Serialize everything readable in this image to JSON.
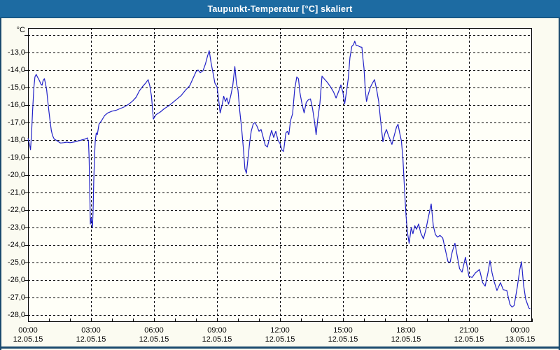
{
  "window": {
    "title": "Taupunkt-Temperatur [°C] skaliert"
  },
  "colors": {
    "title_bar": "#1d6ba2",
    "title_text": "#ffffff",
    "frame": "#1b4a6e",
    "page_bg": "#fbfbf1",
    "plot_bg": "#fffff8",
    "grid": "#000000",
    "axis": "#000000",
    "line": "#2121c8",
    "label": "#000000"
  },
  "chart_data": {
    "type": "line",
    "title": "Taupunkt-Temperatur [°C] skaliert",
    "grid": "dashed",
    "legend": "none",
    "y_axis": {
      "unit_label": "°C",
      "min": -28.4,
      "max": -11.6,
      "gridline_values": [
        -12,
        -13,
        -14,
        -15,
        -16,
        -17,
        -18,
        -19,
        -20,
        -21,
        -22,
        -23,
        -24,
        -25,
        -26,
        -27,
        -28
      ],
      "labeled_ticks": [
        {
          "v": -13,
          "label": "-13,0"
        },
        {
          "v": -14,
          "label": "-14,0"
        },
        {
          "v": -15,
          "label": "-15,0"
        },
        {
          "v": -16,
          "label": "-16,0"
        },
        {
          "v": -17,
          "label": "-17,0"
        },
        {
          "v": -18,
          "label": "-18,0"
        },
        {
          "v": -19,
          "label": "-19,0"
        },
        {
          "v": -20,
          "label": "-20,0"
        },
        {
          "v": -21,
          "label": "-21,0"
        },
        {
          "v": -22,
          "label": "-22,0"
        },
        {
          "v": -23,
          "label": "-23,0"
        },
        {
          "v": -24,
          "label": "-24,0"
        },
        {
          "v": -25,
          "label": "-25,0"
        },
        {
          "v": -26,
          "label": "-26,0"
        },
        {
          "v": -27,
          "label": "-27,0"
        },
        {
          "v": -28,
          "label": "-28,0"
        }
      ]
    },
    "x_axis": {
      "min_hours": 0,
      "max_hours": 24,
      "gridline_step_hours": 3,
      "minor_tick_hours": 1,
      "ticks": [
        {
          "t": 0,
          "time": "00:00",
          "date": "12.05.15",
          "offset": 0
        },
        {
          "t": 3,
          "time": "03:00",
          "date": "12.05.15",
          "offset": 0
        },
        {
          "t": 6,
          "time": "06:00",
          "date": "12.05.15",
          "offset": 0
        },
        {
          "t": 9,
          "time": "09:00",
          "date": "12.05.15",
          "offset": 0
        },
        {
          "t": 12,
          "time": "12:00",
          "date": "12.05.15",
          "offset": 0
        },
        {
          "t": 15,
          "time": "15:00",
          "date": "12.05.15",
          "offset": 0
        },
        {
          "t": 18,
          "time": "18:00",
          "date": "12.05.15",
          "offset": 0
        },
        {
          "t": 21,
          "time": "21:00",
          "date": "12.05.15",
          "offset": 0
        },
        {
          "t": 24,
          "time": "00:00",
          "date": "13.05.15",
          "offset": -17
        }
      ]
    },
    "series": [
      {
        "name": "Taupunkt-Temperatur",
        "color": "#2121c8",
        "points": [
          [
            0.0,
            -17.9
          ],
          [
            0.07,
            -18.25
          ],
          [
            0.12,
            -18.55
          ],
          [
            0.17,
            -17.6
          ],
          [
            0.22,
            -16.3
          ],
          [
            0.28,
            -15.0
          ],
          [
            0.33,
            -14.4
          ],
          [
            0.39,
            -14.25
          ],
          [
            0.45,
            -14.4
          ],
          [
            0.5,
            -14.5
          ],
          [
            0.56,
            -14.65
          ],
          [
            0.61,
            -14.8
          ],
          [
            0.67,
            -14.87
          ],
          [
            0.72,
            -14.6
          ],
          [
            0.78,
            -14.5
          ],
          [
            0.83,
            -14.75
          ],
          [
            0.89,
            -15.15
          ],
          [
            0.94,
            -15.75
          ],
          [
            1.0,
            -16.4
          ],
          [
            1.06,
            -17.0
          ],
          [
            1.11,
            -17.45
          ],
          [
            1.17,
            -17.75
          ],
          [
            1.25,
            -17.95
          ],
          [
            1.33,
            -18.0
          ],
          [
            1.45,
            -18.1
          ],
          [
            1.55,
            -18.17
          ],
          [
            1.7,
            -18.15
          ],
          [
            1.85,
            -18.12
          ],
          [
            2.0,
            -18.15
          ],
          [
            2.1,
            -18.13
          ],
          [
            2.25,
            -18.1
          ],
          [
            2.4,
            -18.05
          ],
          [
            2.55,
            -18.0
          ],
          [
            2.7,
            -17.95
          ],
          [
            2.83,
            -17.88
          ],
          [
            2.88,
            -18.1
          ],
          [
            2.91,
            -19.0
          ],
          [
            2.94,
            -20.8
          ],
          [
            2.97,
            -22.8
          ],
          [
            3.0,
            -22.45
          ],
          [
            3.04,
            -22.7
          ],
          [
            3.07,
            -23.0
          ],
          [
            3.1,
            -22.0
          ],
          [
            3.13,
            -20.4
          ],
          [
            3.17,
            -18.9
          ],
          [
            3.2,
            -18.1
          ],
          [
            3.25,
            -17.6
          ],
          [
            3.3,
            -17.7
          ],
          [
            3.38,
            -17.1
          ],
          [
            3.5,
            -16.9
          ],
          [
            3.65,
            -16.6
          ],
          [
            3.8,
            -16.45
          ],
          [
            4.0,
            -16.35
          ],
          [
            4.2,
            -16.3
          ],
          [
            4.4,
            -16.2
          ],
          [
            4.6,
            -16.1
          ],
          [
            4.8,
            -15.95
          ],
          [
            5.0,
            -15.75
          ],
          [
            5.15,
            -15.55
          ],
          [
            5.3,
            -15.2
          ],
          [
            5.45,
            -14.95
          ],
          [
            5.6,
            -14.75
          ],
          [
            5.72,
            -14.55
          ],
          [
            5.8,
            -14.9
          ],
          [
            5.88,
            -15.5
          ],
          [
            5.97,
            -16.8
          ],
          [
            6.1,
            -16.55
          ],
          [
            6.3,
            -16.4
          ],
          [
            6.5,
            -16.2
          ],
          [
            6.7,
            -16.05
          ],
          [
            6.9,
            -15.85
          ],
          [
            7.1,
            -15.65
          ],
          [
            7.3,
            -15.45
          ],
          [
            7.5,
            -15.15
          ],
          [
            7.7,
            -14.9
          ],
          [
            7.85,
            -14.5
          ],
          [
            8.0,
            -14.1
          ],
          [
            8.1,
            -14.0
          ],
          [
            8.2,
            -14.15
          ],
          [
            8.33,
            -14.05
          ],
          [
            8.45,
            -13.65
          ],
          [
            8.55,
            -13.2
          ],
          [
            8.63,
            -12.9
          ],
          [
            8.72,
            -13.6
          ],
          [
            8.8,
            -14.1
          ],
          [
            8.9,
            -14.75
          ],
          [
            9.0,
            -14.95
          ],
          [
            9.08,
            -15.7
          ],
          [
            9.15,
            -16.45
          ],
          [
            9.25,
            -15.95
          ],
          [
            9.32,
            -15.5
          ],
          [
            9.4,
            -15.8
          ],
          [
            9.47,
            -15.6
          ],
          [
            9.55,
            -15.95
          ],
          [
            9.65,
            -15.5
          ],
          [
            9.75,
            -14.9
          ],
          [
            9.85,
            -13.8
          ],
          [
            9.93,
            -14.8
          ],
          [
            10.0,
            -15.15
          ],
          [
            10.08,
            -16.3
          ],
          [
            10.17,
            -17.3
          ],
          [
            10.25,
            -18.4
          ],
          [
            10.33,
            -19.65
          ],
          [
            10.4,
            -19.9
          ],
          [
            10.48,
            -19.0
          ],
          [
            10.56,
            -18.1
          ],
          [
            10.63,
            -17.5
          ],
          [
            10.72,
            -17.1
          ],
          [
            10.8,
            -17.0
          ],
          [
            10.9,
            -17.2
          ],
          [
            11.0,
            -17.5
          ],
          [
            11.1,
            -17.4
          ],
          [
            11.2,
            -17.85
          ],
          [
            11.3,
            -18.3
          ],
          [
            11.4,
            -18.4
          ],
          [
            11.5,
            -17.9
          ],
          [
            11.6,
            -17.45
          ],
          [
            11.7,
            -17.85
          ],
          [
            11.8,
            -17.5
          ],
          [
            11.9,
            -18.0
          ],
          [
            12.0,
            -18.2
          ],
          [
            12.1,
            -18.6
          ],
          [
            12.17,
            -18.65
          ],
          [
            12.28,
            -17.6
          ],
          [
            12.35,
            -17.5
          ],
          [
            12.42,
            -17.7
          ],
          [
            12.5,
            -16.9
          ],
          [
            12.6,
            -16.5
          ],
          [
            12.7,
            -15.1
          ],
          [
            12.8,
            -14.4
          ],
          [
            12.88,
            -14.5
          ],
          [
            12.95,
            -15.3
          ],
          [
            13.05,
            -15.95
          ],
          [
            13.15,
            -16.45
          ],
          [
            13.25,
            -15.85
          ],
          [
            13.35,
            -15.7
          ],
          [
            13.45,
            -15.65
          ],
          [
            13.55,
            -16.2
          ],
          [
            13.65,
            -17.0
          ],
          [
            13.72,
            -17.7
          ],
          [
            13.8,
            -16.8
          ],
          [
            13.9,
            -15.9
          ],
          [
            14.0,
            -14.35
          ],
          [
            14.1,
            -14.5
          ],
          [
            14.25,
            -14.7
          ],
          [
            14.4,
            -14.95
          ],
          [
            14.55,
            -15.25
          ],
          [
            14.67,
            -15.6
          ],
          [
            14.8,
            -15.2
          ],
          [
            14.9,
            -14.85
          ],
          [
            15.0,
            -15.3
          ],
          [
            15.08,
            -15.95
          ],
          [
            15.17,
            -15.2
          ],
          [
            15.25,
            -14.5
          ],
          [
            15.33,
            -13.3
          ],
          [
            15.42,
            -12.65
          ],
          [
            15.5,
            -12.55
          ],
          [
            15.56,
            -12.35
          ],
          [
            15.63,
            -12.6
          ],
          [
            15.72,
            -12.62
          ],
          [
            15.82,
            -12.68
          ],
          [
            15.9,
            -12.7
          ],
          [
            15.95,
            -13.35
          ],
          [
            16.0,
            -13.9
          ],
          [
            16.06,
            -15.1
          ],
          [
            16.12,
            -15.8
          ],
          [
            16.2,
            -15.4
          ],
          [
            16.3,
            -15.0
          ],
          [
            16.4,
            -14.75
          ],
          [
            16.5,
            -14.55
          ],
          [
            16.6,
            -15.1
          ],
          [
            16.7,
            -15.8
          ],
          [
            16.8,
            -17.0
          ],
          [
            16.9,
            -18.1
          ],
          [
            17.0,
            -17.6
          ],
          [
            17.07,
            -17.4
          ],
          [
            17.15,
            -17.7
          ],
          [
            17.25,
            -18.0
          ],
          [
            17.33,
            -18.25
          ],
          [
            17.45,
            -17.7
          ],
          [
            17.55,
            -17.25
          ],
          [
            17.62,
            -17.1
          ],
          [
            17.7,
            -17.6
          ],
          [
            17.78,
            -18.05
          ],
          [
            17.85,
            -19.0
          ],
          [
            17.92,
            -20.6
          ],
          [
            18.0,
            -22.3
          ],
          [
            18.07,
            -23.3
          ],
          [
            18.15,
            -23.9
          ],
          [
            18.25,
            -23.0
          ],
          [
            18.33,
            -23.35
          ],
          [
            18.42,
            -22.9
          ],
          [
            18.5,
            -23.1
          ],
          [
            18.6,
            -22.8
          ],
          [
            18.7,
            -23.3
          ],
          [
            18.83,
            -23.65
          ],
          [
            18.95,
            -23.1
          ],
          [
            19.05,
            -22.5
          ],
          [
            19.2,
            -21.65
          ],
          [
            19.3,
            -22.9
          ],
          [
            19.4,
            -23.4
          ],
          [
            19.5,
            -23.55
          ],
          [
            19.62,
            -23.45
          ],
          [
            19.75,
            -23.6
          ],
          [
            19.85,
            -24.15
          ],
          [
            20.0,
            -24.95
          ],
          [
            20.1,
            -25.0
          ],
          [
            20.2,
            -24.4
          ],
          [
            20.33,
            -23.9
          ],
          [
            20.45,
            -24.7
          ],
          [
            20.55,
            -25.35
          ],
          [
            20.67,
            -25.55
          ],
          [
            20.83,
            -24.7
          ],
          [
            21.0,
            -25.8
          ],
          [
            21.15,
            -25.85
          ],
          [
            21.3,
            -25.6
          ],
          [
            21.5,
            -25.4
          ],
          [
            21.65,
            -26.15
          ],
          [
            21.77,
            -26.35
          ],
          [
            21.9,
            -25.6
          ],
          [
            22.0,
            -24.9
          ],
          [
            22.1,
            -25.6
          ],
          [
            22.2,
            -26.1
          ],
          [
            22.33,
            -26.6
          ],
          [
            22.5,
            -26.15
          ],
          [
            22.63,
            -26.55
          ],
          [
            22.8,
            -26.6
          ],
          [
            22.95,
            -27.4
          ],
          [
            23.05,
            -27.55
          ],
          [
            23.15,
            -27.45
          ],
          [
            23.3,
            -26.4
          ],
          [
            23.42,
            -25.4
          ],
          [
            23.5,
            -24.95
          ],
          [
            23.6,
            -26.3
          ],
          [
            23.7,
            -27.1
          ],
          [
            23.85,
            -27.6
          ],
          [
            23.92,
            -27.65
          ]
        ]
      }
    ]
  }
}
